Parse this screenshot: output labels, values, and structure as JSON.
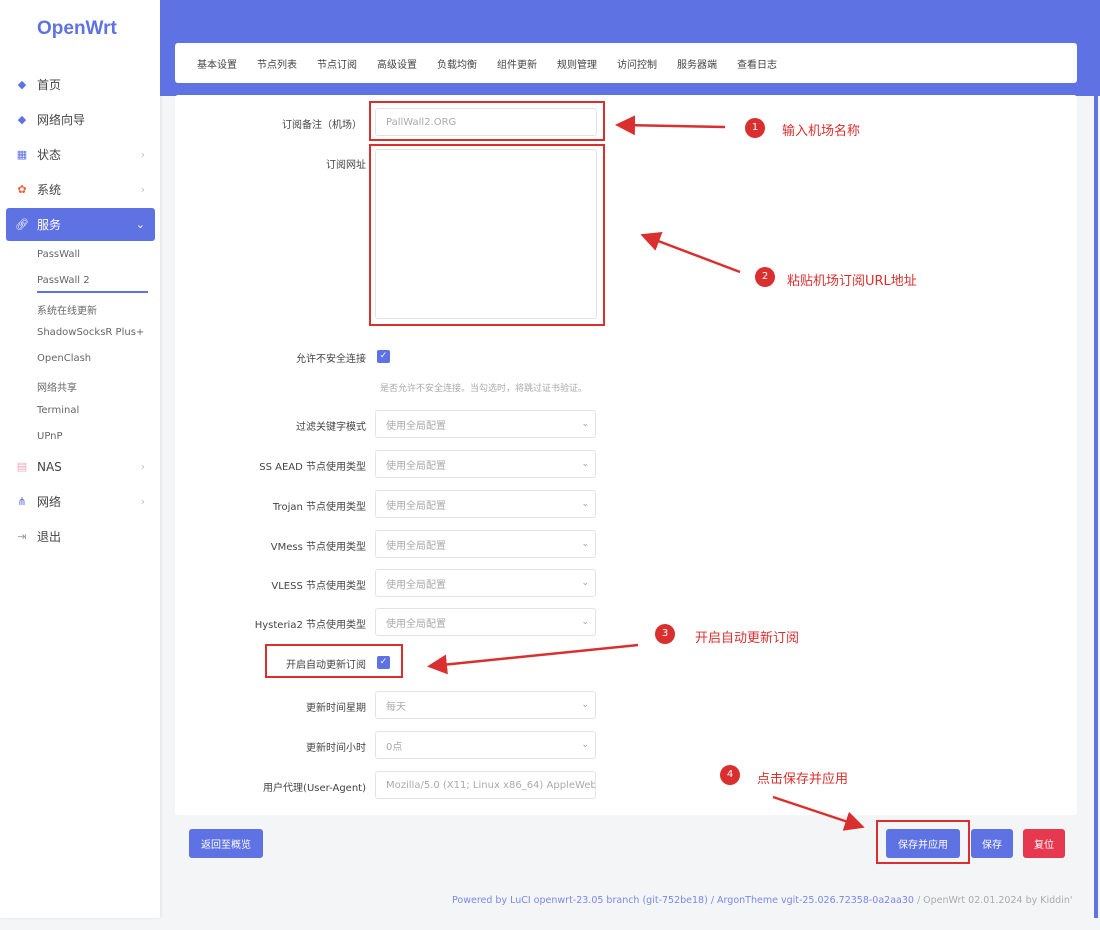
{
  "logo": "OpenWrt",
  "sidebar": {
    "items": [
      {
        "label": "首页",
        "icon": "cube-icon"
      },
      {
        "label": "网络向导",
        "icon": "cube-icon"
      },
      {
        "label": "状态",
        "icon": "dashboard-icon"
      },
      {
        "label": "系统",
        "icon": "gear-icon"
      },
      {
        "label": "服务",
        "icon": "link-icon"
      },
      {
        "label": "NAS",
        "icon": "database-icon"
      },
      {
        "label": "网络",
        "icon": "sitemap-icon"
      },
      {
        "label": "退出",
        "icon": "logout-icon"
      }
    ],
    "sub_items": [
      "PassWall",
      "PassWall 2",
      "系统在线更新",
      "ShadowSocksR Plus+",
      "OpenClash",
      "网络共享",
      "Terminal",
      "UPnP"
    ]
  },
  "tabs": [
    "基本设置",
    "节点列表",
    "节点订阅",
    "高级设置",
    "负载均衡",
    "组件更新",
    "规则管理",
    "访问控制",
    "服务器端",
    "查看日志"
  ],
  "form": {
    "remark_label": "订阅备注（机场）",
    "remark_value": "PallWall2.ORG",
    "url_label": "订阅网址",
    "url_value": "",
    "insecure_label": "允许不安全连接",
    "insecure_help": "是否允许不安全连接。当勾选时，将跳过证书验证。",
    "selects": [
      {
        "label": "过滤关键字模式",
        "value": "使用全局配置"
      },
      {
        "label": "SS AEAD 节点使用类型",
        "value": "使用全局配置"
      },
      {
        "label": "Trojan 节点使用类型",
        "value": "使用全局配置"
      },
      {
        "label": "VMess 节点使用类型",
        "value": "使用全局配置"
      },
      {
        "label": "VLESS 节点使用类型",
        "value": "使用全局配置"
      },
      {
        "label": "Hysteria2 节点使用类型",
        "value": "使用全局配置"
      }
    ],
    "auto_label": "开启自动更新订阅",
    "week_label": "更新时间星期",
    "week_value": "每天",
    "hour_label": "更新时间小时",
    "hour_value": "0点",
    "ua_label": "用户代理(User-Agent)",
    "ua_value": "Mozilla/5.0 (X11; Linux x86_64) AppleWeb#"
  },
  "buttons": {
    "back": "返回至概览",
    "save_apply": "保存并应用",
    "save": "保存",
    "reset": "复位"
  },
  "annotations": [
    {
      "n": "1",
      "text": "输入机场名称"
    },
    {
      "n": "2",
      "text": "粘贴机场订阅URL地址"
    },
    {
      "n": "3",
      "text": "开启自动更新订阅"
    },
    {
      "n": "4",
      "text": "点击保存并应用"
    }
  ],
  "footer": {
    "luci": "Powered by LuCI openwrt-23.05 branch (git-752be18)",
    "theme": " / ArgonTheme vgit-25.026.72358-0a2aa30",
    "rest": " / OpenWrt 02.01.2024 by Kiddin'"
  },
  "colors": {
    "accent": "#5e72e4",
    "reset": "#e63950",
    "annotation": "#d9302f"
  }
}
